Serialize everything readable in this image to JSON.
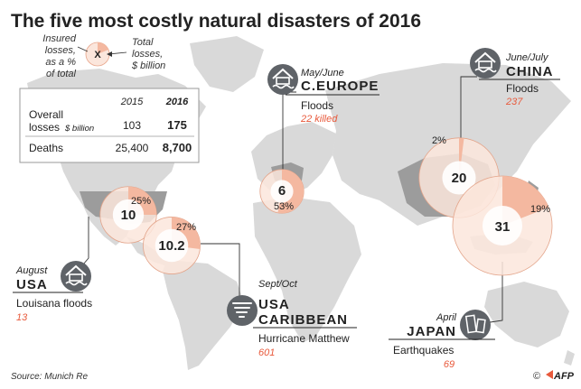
{
  "title": "The five most costly natural disasters of 2016",
  "legend": {
    "insured_label": [
      "Insured",
      "losses,",
      "as a %",
      "of total"
    ],
    "marker": "X",
    "total_label": [
      "Total",
      "losses,",
      "$ billion"
    ]
  },
  "summary": {
    "years": [
      "2015",
      "2016"
    ],
    "overall_label": [
      "Overall",
      "losses"
    ],
    "overall_unit": "$ billion",
    "overall_values": [
      "103",
      "175"
    ],
    "deaths_label": "Deaths",
    "deaths_values": [
      "25,400",
      "8,700"
    ]
  },
  "events": [
    {
      "id": "china",
      "period": "June/July",
      "region": [
        "CHINA"
      ],
      "type": "Floods",
      "deaths": "237",
      "total_label": "20",
      "insured_label": "2%",
      "total": 20,
      "insured_pct": 2,
      "icon": "flood-icon"
    },
    {
      "id": "europe",
      "period": "May/June",
      "region": [
        "C.EUROPE"
      ],
      "type": "Floods",
      "deaths": "22 killed",
      "total_label": "6",
      "insured_label": "53%",
      "total": 6,
      "insured_pct": 53,
      "icon": "flood-icon"
    },
    {
      "id": "usa",
      "period": "August",
      "region": [
        "USA"
      ],
      "type": "Louisana floods",
      "deaths": "13",
      "total_label": "10",
      "insured_label": "25%",
      "total": 10,
      "insured_pct": 25,
      "icon": "flood-icon"
    },
    {
      "id": "caribbean",
      "period": "Sept/Oct",
      "region": [
        "USA",
        "CARIBBEAN"
      ],
      "type": "Hurricane Matthew",
      "deaths": "601",
      "total_label": "10.2",
      "insured_label": "27%",
      "total": 10.2,
      "insured_pct": 27,
      "icon": "hurricane-icon"
    },
    {
      "id": "japan",
      "period": "April",
      "region": [
        "JAPAN"
      ],
      "type": "Earthquakes",
      "deaths": "69",
      "total_label": "31",
      "insured_label": "19%",
      "total": 31,
      "insured_pct": 19,
      "icon": "earthquake-icon"
    }
  ],
  "source": "Source: Munich Re",
  "credit": "AFP",
  "copyright": "©",
  "colors": {
    "accent_red": "#e8593b",
    "insured_fill": "#f4b8a0",
    "ring_fill": "#fbe6dc",
    "map_land": "#d9d9d9",
    "map_highlight": "#9c9c9c",
    "icon_bg": "#5f6368",
    "text_dark": "#222222"
  },
  "chart_data": {
    "type": "pie",
    "title": "The five most costly natural disasters of 2016",
    "categories": [
      "China floods",
      "C. Europe floods",
      "USA Louisana floods",
      "USA/Caribbean Hurricane Matthew",
      "Japan earthquakes"
    ],
    "series": [
      {
        "name": "Total losses, $ billion",
        "values": [
          20,
          6,
          10,
          10.2,
          31
        ]
      },
      {
        "name": "Insured losses, as a % of total",
        "values": [
          2,
          53,
          25,
          27,
          19
        ]
      }
    ]
  }
}
